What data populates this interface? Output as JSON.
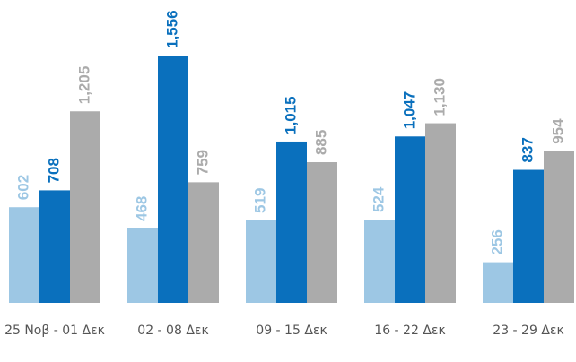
{
  "chart_data": {
    "type": "bar",
    "categories": [
      "25 Νοβ - 01 Δεκ",
      "02 - 08 Δεκ",
      "09 - 15 Δεκ",
      "16 - 22 Δεκ",
      "23 - 29 Δεκ"
    ],
    "series": [
      {
        "color": "#9dc7e4",
        "values": [
          602,
          468,
          519,
          524,
          256
        ]
      },
      {
        "color": "#0a70bd",
        "values": [
          708,
          1556,
          1015,
          1047,
          837
        ],
        "value_labels": [
          "708",
          "1,556",
          "1,015",
          "1,047",
          "837"
        ]
      },
      {
        "color": "#ababab",
        "values": [
          1205,
          759,
          885,
          1130,
          954
        ],
        "value_labels": [
          "1,205",
          "759",
          "885",
          "1,130",
          "954"
        ]
      }
    ]
  }
}
